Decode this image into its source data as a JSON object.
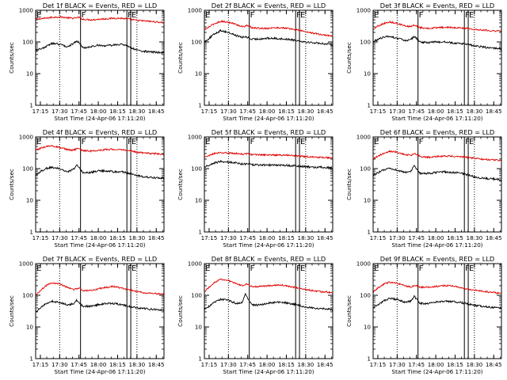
{
  "window_title": "",
  "chart_data": {
    "type": "line",
    "yscale": "log",
    "ylim": [
      1,
      1000
    ],
    "ylabel": "Counts/sec",
    "xlabel": "Start Time (24-Apr-06 17:11:20)",
    "x_ticks": [
      "17:15",
      "17:30",
      "17:45",
      "18:00",
      "18:15",
      "18:30",
      "18:45"
    ],
    "x_tick_minutes": [
      17.25,
      17.5,
      17.75,
      18.0,
      18.25,
      18.5,
      18.75
    ],
    "x_range_hours": [
      17.189,
      18.85
    ],
    "y_ticks": [
      "1",
      "10",
      "100",
      "1000"
    ],
    "y_tick_values": [
      1,
      10,
      100,
      1000
    ],
    "marker_hours": {
      "dotted": [
        17.5,
        18.5
      ],
      "solid": [
        17.77,
        18.37,
        18.42
      ]
    },
    "marker_letters": [
      {
        "label": "E",
        "hour": 17.19
      },
      {
        "label": "F",
        "hour": 17.77
      },
      {
        "label": "F",
        "hour": 18.37
      },
      {
        "label": "E",
        "hour": 18.42
      }
    ],
    "series_colors": {
      "events": "#000000",
      "lld": "#e00000"
    },
    "panels": [
      {
        "title": "Det 1f BLACK = Events, RED = LLD",
        "series": [
          {
            "hour": [
              17.19,
              17.25,
              17.32,
              17.4,
              17.5,
              17.6,
              17.68,
              17.72,
              17.75,
              17.8,
              17.9,
              18.0,
              18.1,
              18.2,
              18.3,
              18.4,
              18.5,
              18.6,
              18.7,
              18.8,
              18.85
            ],
            "events": [
              55,
              60,
              70,
              90,
              85,
              70,
              90,
              110,
              95,
              65,
              70,
              80,
              75,
              80,
              85,
              70,
              55,
              50,
              48,
              46,
              45
            ],
            "lld": [
              520,
              540,
              560,
              600,
              620,
              580,
              560,
              580,
              600,
              520,
              500,
              520,
              540,
              560,
              560,
              520,
              480,
              460,
              440,
              420,
              410
            ]
          }
        ]
      },
      {
        "title": "Det 2f BLACK = Events, RED = LLD",
        "series": [
          {
            "hour": [
              17.19,
              17.25,
              17.32,
              17.4,
              17.5,
              17.6,
              17.68,
              17.72,
              17.75,
              17.8,
              17.9,
              18.0,
              18.1,
              18.2,
              18.3,
              18.4,
              18.5,
              18.6,
              18.7,
              18.8,
              18.85
            ],
            "events": [
              100,
              130,
              180,
              230,
              200,
              160,
              140,
              145,
              140,
              120,
              125,
              130,
              130,
              125,
              120,
              110,
              100,
              95,
              90,
              85,
              80
            ],
            "lld": [
              240,
              300,
              380,
              450,
              420,
              360,
              300,
              320,
              330,
              280,
              270,
              270,
              280,
              280,
              260,
              240,
              210,
              190,
              170,
              160,
              150
            ]
          }
        ]
      },
      {
        "title": "Det 3f BLACK = Events, RED = LLD",
        "series": [
          {
            "hour": [
              17.19,
              17.25,
              17.32,
              17.4,
              17.5,
              17.6,
              17.68,
              17.72,
              17.75,
              17.8,
              17.9,
              18.0,
              18.1,
              18.2,
              18.3,
              18.4,
              18.5,
              18.6,
              18.7,
              18.8,
              18.85
            ],
            "events": [
              100,
              120,
              140,
              150,
              130,
              110,
              120,
              150,
              130,
              100,
              95,
              100,
              100,
              95,
              90,
              85,
              75,
              70,
              65,
              62,
              60
            ],
            "lld": [
              250,
              320,
              380,
              430,
              390,
              320,
              300,
              340,
              330,
              280,
              270,
              280,
              290,
              290,
              280,
              270,
              250,
              240,
              230,
              220,
              220
            ]
          }
        ]
      },
      {
        "title": "Det 4f BLACK = Events, RED = LLD",
        "series": [
          {
            "hour": [
              17.19,
              17.25,
              17.32,
              17.4,
              17.5,
              17.6,
              17.68,
              17.72,
              17.75,
              17.8,
              17.9,
              18.0,
              18.1,
              18.2,
              18.3,
              18.4,
              18.5,
              18.6,
              18.7,
              18.8,
              18.85
            ],
            "events": [
              60,
              80,
              100,
              110,
              100,
              80,
              95,
              140,
              110,
              75,
              75,
              85,
              85,
              80,
              80,
              70,
              60,
              55,
              52,
              50,
              50
            ],
            "lld": [
              380,
              440,
              500,
              520,
              470,
              400,
              380,
              420,
              420,
              370,
              360,
              380,
              400,
              410,
              400,
              370,
              330,
              310,
              300,
              290,
              285
            ]
          }
        ]
      },
      {
        "title": "Det 5f BLACK = Events, RED = LLD",
        "series": [
          {
            "hour": [
              17.19,
              17.25,
              17.32,
              17.4,
              17.5,
              17.6,
              17.68,
              17.72,
              17.75,
              17.8,
              17.9,
              18.0,
              18.1,
              18.2,
              18.3,
              18.4,
              18.5,
              18.6,
              18.7,
              18.8,
              18.85
            ],
            "events": [
              110,
              130,
              150,
              170,
              160,
              150,
              140,
              140,
              145,
              135,
              130,
              130,
              130,
              130,
              125,
              120,
              115,
              110,
              110,
              108,
              105
            ],
            "lld": [
              230,
              260,
              300,
              320,
              310,
              300,
              290,
              290,
              295,
              280,
              270,
              270,
              270,
              270,
              260,
              250,
              240,
              230,
              225,
              220,
              215
            ]
          }
        ]
      },
      {
        "title": "Det 6f BLACK = Events, RED = LLD",
        "series": [
          {
            "hour": [
              17.19,
              17.25,
              17.32,
              17.4,
              17.5,
              17.6,
              17.68,
              17.72,
              17.75,
              17.8,
              17.9,
              18.0,
              18.1,
              18.2,
              18.3,
              18.4,
              18.5,
              18.6,
              18.7,
              18.8,
              18.85
            ],
            "events": [
              60,
              75,
              90,
              100,
              90,
              75,
              85,
              120,
              95,
              70,
              70,
              75,
              80,
              75,
              75,
              65,
              55,
              50,
              48,
              46,
              45
            ],
            "lld": [
              200,
              250,
              300,
              350,
              330,
              280,
              260,
              300,
              290,
              240,
              230,
              240,
              250,
              250,
              240,
              230,
              210,
              200,
              190,
              185,
              180
            ]
          }
        ]
      },
      {
        "title": "Det 7f BLACK = Events, RED = LLD",
        "series": [
          {
            "hour": [
              17.19,
              17.25,
              17.32,
              17.4,
              17.5,
              17.6,
              17.68,
              17.72,
              17.75,
              17.8,
              17.9,
              18.0,
              18.1,
              18.2,
              18.3,
              18.4,
              18.5,
              18.6,
              18.7,
              18.8,
              18.85
            ],
            "events": [
              30,
              40,
              55,
              65,
              60,
              50,
              55,
              70,
              60,
              45,
              45,
              50,
              55,
              55,
              50,
              45,
              40,
              38,
              36,
              35,
              35
            ],
            "lld": [
              100,
              140,
              200,
              250,
              230,
              180,
              150,
              160,
              170,
              140,
              140,
              160,
              180,
              190,
              170,
              150,
              130,
              120,
              115,
              110,
              110
            ]
          }
        ]
      },
      {
        "title": "Det 8f BLACK = Events, RED = LLD",
        "series": [
          {
            "hour": [
              17.19,
              17.25,
              17.32,
              17.4,
              17.5,
              17.6,
              17.68,
              17.72,
              17.75,
              17.8,
              17.9,
              18.0,
              18.1,
              18.2,
              18.3,
              18.4,
              18.5,
              18.6,
              18.7,
              18.8,
              18.85
            ],
            "events": [
              35,
              45,
              60,
              75,
              70,
              55,
              60,
              110,
              80,
              50,
              50,
              55,
              60,
              60,
              55,
              50,
              42,
              40,
              38,
              36,
              35
            ],
            "lld": [
              130,
              180,
              250,
              320,
              290,
              230,
              200,
              220,
              220,
              190,
              190,
              200,
              210,
              210,
              190,
              170,
              150,
              140,
              130,
              125,
              120
            ]
          }
        ]
      },
      {
        "title": "Det 9f BLACK = Events, RED = LLD",
        "series": [
          {
            "hour": [
              17.19,
              17.25,
              17.32,
              17.4,
              17.5,
              17.6,
              17.68,
              17.72,
              17.75,
              17.8,
              17.9,
              18.0,
              18.1,
              18.2,
              18.3,
              18.4,
              18.5,
              18.6,
              18.7,
              18.8,
              18.85
            ],
            "events": [
              40,
              50,
              65,
              80,
              75,
              60,
              65,
              95,
              75,
              55,
              55,
              60,
              65,
              65,
              60,
              55,
              48,
              45,
              42,
              40,
              40
            ],
            "lld": [
              130,
              170,
              220,
              260,
              240,
              200,
              180,
              200,
              200,
              180,
              180,
              190,
              200,
              200,
              180,
              160,
              145,
              135,
              125,
              120,
              118
            ]
          }
        ]
      }
    ]
  }
}
